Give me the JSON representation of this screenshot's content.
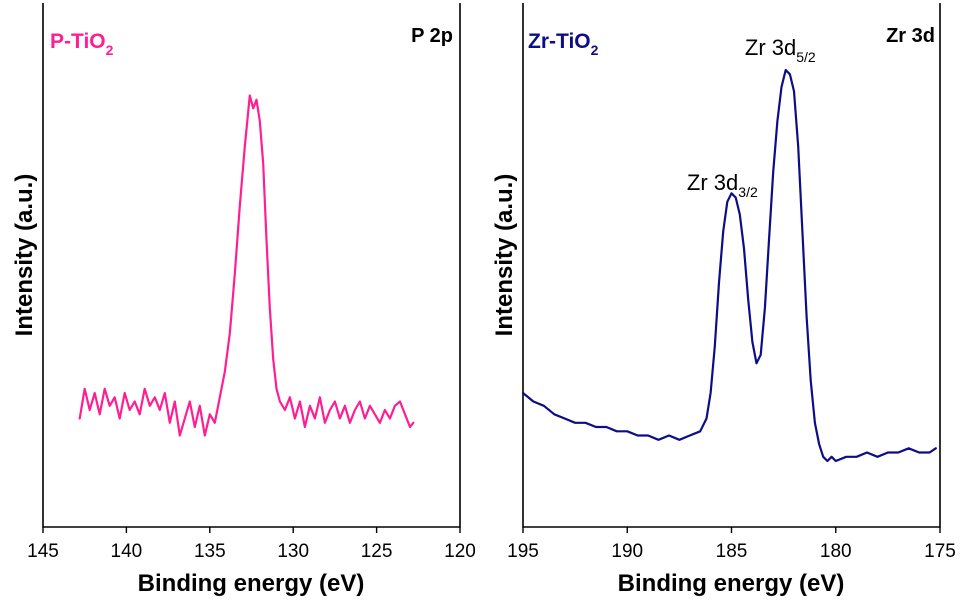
{
  "chart_data": [
    {
      "type": "line",
      "sample_label": {
        "main": "P-TiO",
        "sub": "2"
      },
      "region_label": "P 2p",
      "xlabel": "Binding energy (eV)",
      "ylabel": "Intensity (a.u.)",
      "xlim": [
        145,
        120
      ],
      "x_reversed": true,
      "ylim": [
        0,
        100
      ],
      "y_ticks_shown": false,
      "xticks": [
        145,
        140,
        135,
        130,
        125,
        120
      ],
      "xtick_labels": [
        "145",
        "140",
        "135",
        "130",
        "125",
        "120"
      ],
      "color": "#ff1f93",
      "series": [
        {
          "x": [
            142.8,
            142.5,
            142.2,
            141.9,
            141.6,
            141.3,
            141.0,
            140.7,
            140.4,
            140.1,
            139.8,
            139.5,
            139.2,
            138.9,
            138.6,
            138.3,
            138.0,
            137.7,
            137.4,
            137.1,
            136.8,
            136.5,
            136.2,
            135.9,
            135.6,
            135.3,
            135.0,
            134.7,
            134.4,
            134.1,
            133.8,
            133.5,
            133.2,
            132.9,
            132.6,
            132.4,
            132.2,
            132.0,
            131.8,
            131.6,
            131.4,
            131.2,
            131.0,
            130.8,
            130.5,
            130.2,
            129.9,
            129.6,
            129.3,
            129.0,
            128.7,
            128.4,
            128.1,
            127.8,
            127.5,
            127.2,
            126.9,
            126.6,
            126.3,
            126.0,
            125.7,
            125.4,
            125.1,
            124.8,
            124.5,
            124.2,
            123.9,
            123.6,
            123.3,
            123.0,
            122.8
          ],
          "y": [
            18,
            25,
            20,
            24,
            19,
            25,
            21,
            23,
            18,
            24,
            20,
            22,
            19,
            25,
            21,
            23,
            20,
            24,
            17,
            22,
            14,
            18,
            22,
            16,
            21,
            14,
            19,
            17,
            23,
            29,
            38,
            52,
            68,
            82,
            94,
            91,
            93,
            88,
            78,
            60,
            44,
            32,
            25,
            22,
            20,
            23,
            18,
            22,
            16,
            21,
            18,
            23,
            17,
            20,
            22,
            18,
            21,
            17,
            20,
            22,
            18,
            21,
            19,
            17,
            20,
            18,
            21,
            22,
            19,
            16,
            17
          ]
        }
      ]
    },
    {
      "type": "line",
      "sample_label": {
        "main": "Zr-TiO",
        "sub": "2"
      },
      "region_label": "Zr 3d",
      "xlabel": "Binding energy (eV)",
      "ylabel": "Intensity (a.u.)",
      "xlim": [
        195,
        175
      ],
      "x_reversed": true,
      "ylim": [
        0,
        100
      ],
      "y_ticks_shown": false,
      "xticks": [
        195,
        190,
        185,
        180,
        175
      ],
      "xtick_labels": [
        "195",
        "190",
        "185",
        "180",
        "175"
      ],
      "color": "#0d0d86",
      "annotations": [
        {
          "main": "Zr 3d",
          "sub": "3/2",
          "x": 184.5,
          "y": 71
        },
        {
          "main": "Zr 3d",
          "sub": "5/2",
          "x": 182.2,
          "y": 100
        }
      ],
      "series": [
        {
          "x": [
            195.0,
            194.5,
            194.0,
            193.5,
            193.0,
            192.5,
            192.0,
            191.5,
            191.0,
            190.5,
            190.0,
            189.5,
            189.0,
            188.5,
            188.0,
            187.5,
            187.0,
            186.5,
            186.2,
            186.0,
            185.8,
            185.6,
            185.4,
            185.2,
            185.0,
            184.8,
            184.6,
            184.4,
            184.2,
            184.0,
            183.8,
            183.6,
            183.4,
            183.2,
            183.0,
            182.8,
            182.6,
            182.4,
            182.2,
            182.0,
            181.8,
            181.6,
            181.4,
            181.2,
            181.0,
            180.8,
            180.6,
            180.4,
            180.2,
            180.0,
            179.5,
            179.0,
            178.5,
            178.0,
            177.5,
            177.0,
            176.5,
            176.0,
            175.5,
            175.2
          ],
          "y": [
            24,
            22,
            21,
            19,
            18,
            17,
            17,
            16,
            16,
            15,
            15,
            14,
            14,
            13,
            14,
            13,
            14,
            15,
            18,
            24,
            35,
            50,
            62,
            69,
            71,
            70,
            66,
            58,
            46,
            36,
            31,
            33,
            44,
            60,
            76,
            88,
            96,
            100,
            99,
            95,
            82,
            62,
            42,
            27,
            17,
            12,
            9,
            8,
            9,
            8,
            9,
            9,
            10,
            9,
            10,
            10,
            11,
            10,
            10,
            11
          ]
        }
      ]
    }
  ]
}
